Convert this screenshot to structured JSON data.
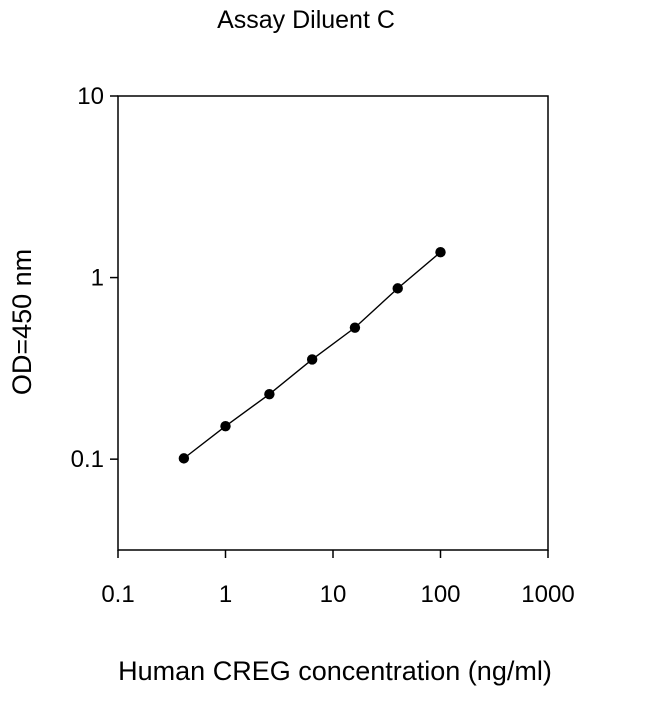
{
  "chart_data": {
    "type": "line",
    "title": "Assay Diluent C",
    "xlabel": "Human CREG concentration (ng/ml)",
    "ylabel": "OD=450 nm",
    "x_scale": "log",
    "y_scale": "log",
    "xlim": [
      0.1,
      1000
    ],
    "ylim": [
      0.0316,
      10
    ],
    "x_ticks": [
      0.1,
      1,
      10,
      100,
      1000
    ],
    "x_tick_labels": [
      "0.1",
      "1",
      "10",
      "100",
      "1000"
    ],
    "y_ticks": [
      0.1,
      1,
      10
    ],
    "y_tick_labels": [
      "0.1",
      "1",
      "10"
    ],
    "grid": false,
    "series": [
      {
        "x": [
          0.41,
          1.0,
          2.56,
          6.4,
          16,
          40,
          100
        ],
        "y": [
          0.101,
          0.152,
          0.228,
          0.354,
          0.53,
          0.872,
          1.38
        ]
      }
    ],
    "colors": {
      "line": "#000000",
      "marker": "#000000",
      "axis": "#000000"
    }
  }
}
